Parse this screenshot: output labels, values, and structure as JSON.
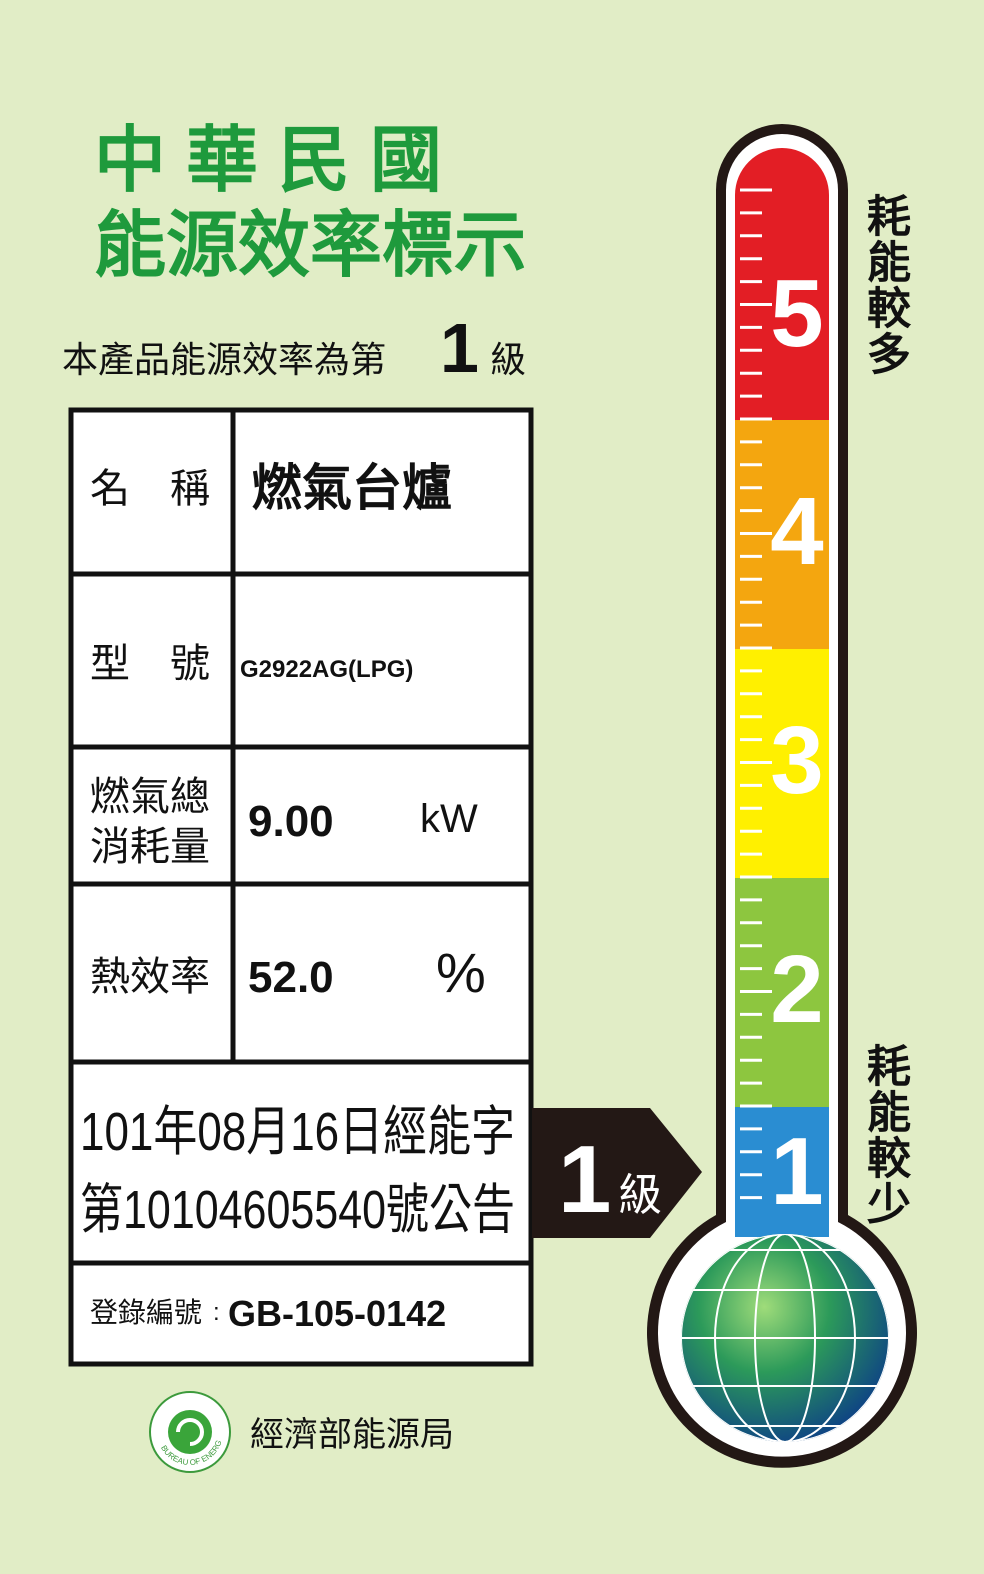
{
  "header": {
    "title_line1": "中 華 民 國",
    "title_line2": "能源效率標示"
  },
  "grade_statement": {
    "prefix": "本產品能源效率為第",
    "grade": "1",
    "suffix": "級"
  },
  "table": {
    "rows": [
      {
        "label": [
          "名　稱"
        ],
        "value": "燃氣台爐"
      },
      {
        "label": [
          "型　號"
        ],
        "value": "G2922AG(LPG)"
      },
      {
        "label": [
          "燃氣總",
          "消耗量"
        ],
        "value": "9.00",
        "unit": "kW"
      },
      {
        "label": [
          "熱效率"
        ],
        "value": "52.0",
        "unit": "%"
      }
    ],
    "announcement": [
      "101年08月16日經能字",
      "第10104605540號公告"
    ],
    "registration": {
      "label": "登錄編號",
      "separator": ":",
      "number": "GB-105-0142"
    }
  },
  "arrow": {
    "grade": "1",
    "unit": "級"
  },
  "scale": {
    "levels": [
      "5",
      "4",
      "3",
      "2",
      "1"
    ],
    "top_label": "耗能較多",
    "bottom_label": "耗能較少"
  },
  "footer": {
    "logo_text": "BUREAU OF ENERGY",
    "agency": "經濟部能源局"
  }
}
